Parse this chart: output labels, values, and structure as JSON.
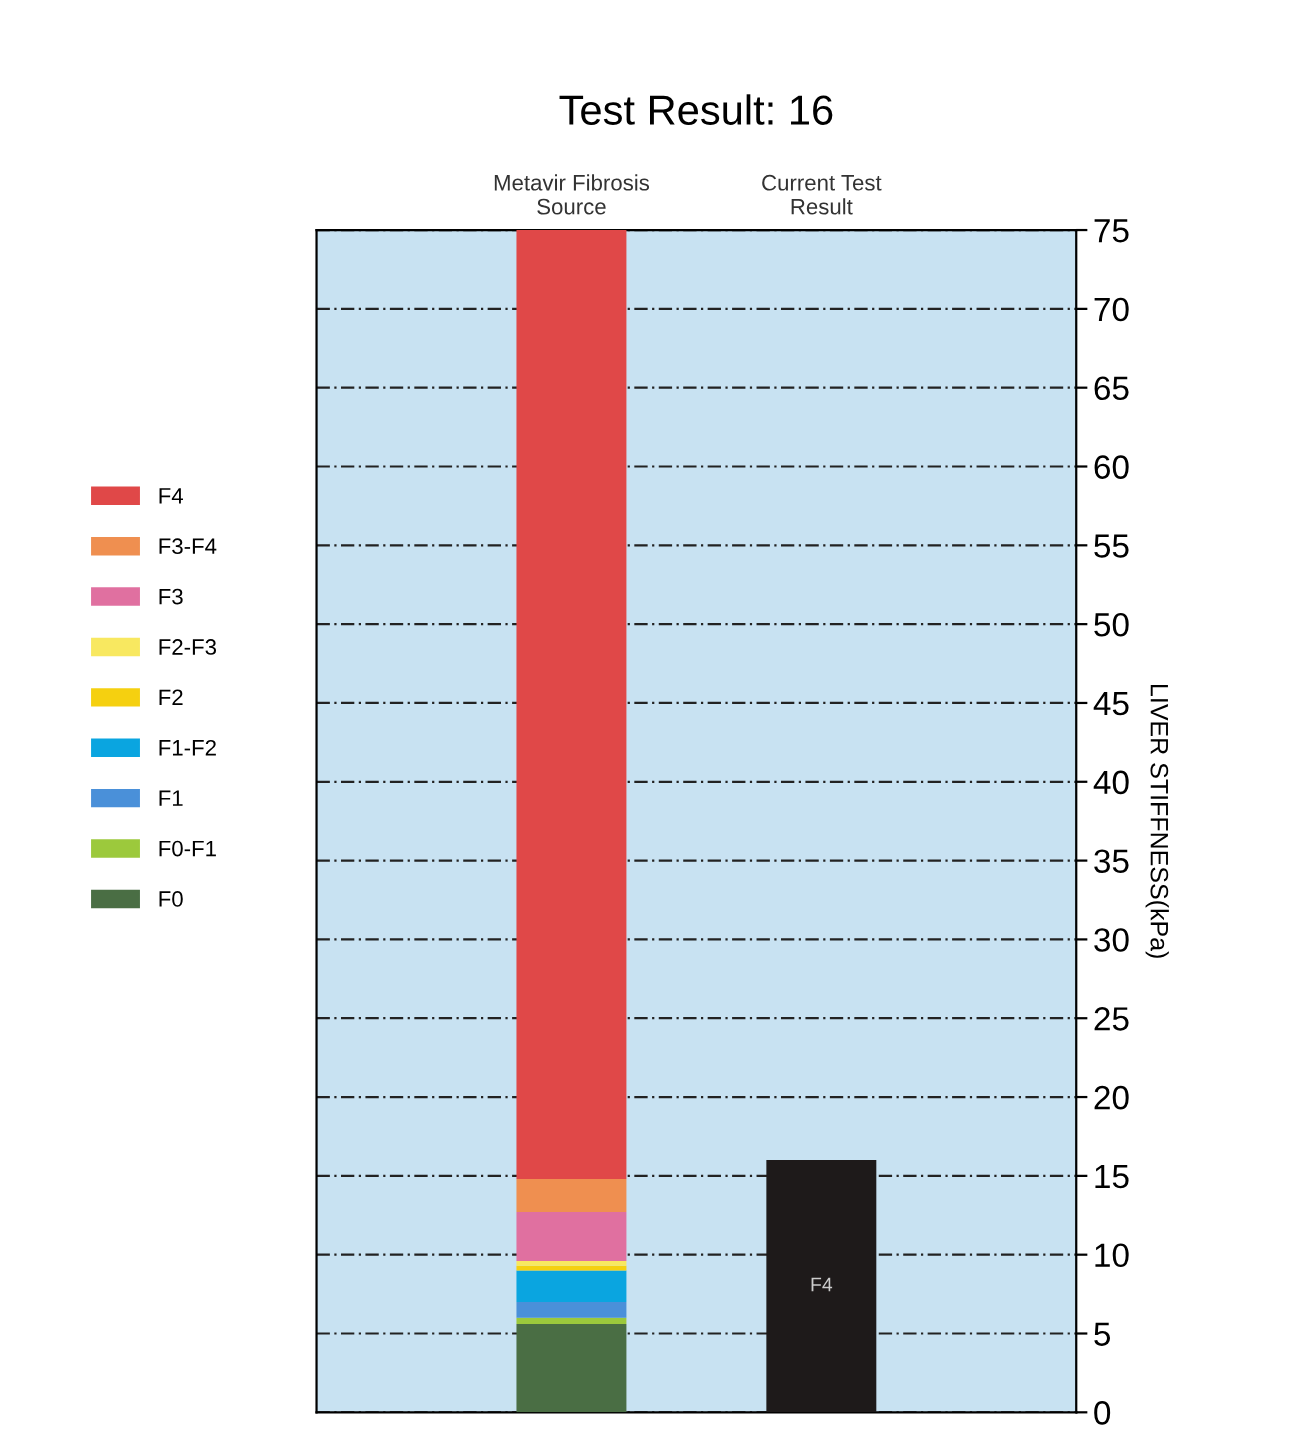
{
  "chart_data": {
    "type": "bar",
    "title": "Test Result: 16",
    "categories": [
      "Metavir Fibrosis\nSource",
      "Current Test\nResult"
    ],
    "ylabel": "LIVER STIFFNESS(kPa)",
    "stacked": true,
    "series": [
      {
        "name": "F0",
        "color": "#4a6e44",
        "values": [
          5.6,
          null
        ]
      },
      {
        "name": "F0-F1",
        "color": "#9cc93c",
        "values": [
          0.4,
          null
        ]
      },
      {
        "name": "F1",
        "color": "#4a90d9",
        "values": [
          1.0,
          null
        ]
      },
      {
        "name": "F1-F2",
        "color": "#0aa5e0",
        "values": [
          2.0,
          null
        ]
      },
      {
        "name": "F2",
        "color": "#f5d010",
        "values": [
          0.3,
          null
        ]
      },
      {
        "name": "F2-F3",
        "color": "#f8e860",
        "values": [
          0.3,
          null
        ]
      },
      {
        "name": "F3",
        "color": "#e070a0",
        "values": [
          3.1,
          null
        ]
      },
      {
        "name": "F3-F4",
        "color": "#ef8f50",
        "values": [
          2.1,
          null
        ]
      },
      {
        "name": "F4",
        "color": "#e04848",
        "values": [
          60.2,
          null
        ]
      },
      {
        "color": "#1e1a1a",
        "values": [
          null,
          16
        ]
      }
    ],
    "annotations": [
      "F4"
    ],
    "ylim": [
      0,
      75
    ],
    "yticks": [
      0,
      5,
      10,
      15,
      20,
      25,
      30,
      35,
      40,
      45,
      50,
      55,
      60,
      65,
      70,
      75
    ],
    "grid": "y",
    "legend": "left"
  }
}
